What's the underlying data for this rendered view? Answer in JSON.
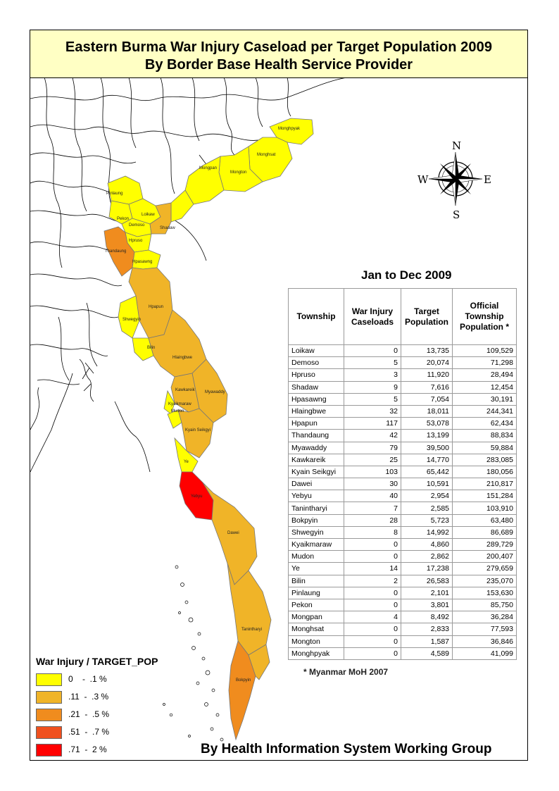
{
  "title": {
    "line1": "Eastern Burma War Injury Caseload per Target Population 2009",
    "line2": "By Border Base Health Service Provider"
  },
  "compass": {
    "n": "N",
    "s": "S",
    "e": "E",
    "w": "W"
  },
  "table": {
    "title": "Jan to Dec 2009",
    "headers": {
      "township": "Township",
      "caseloads": "War Injury Caseloads",
      "target": "Target Population",
      "official": "Official Township Population *"
    },
    "rows": [
      {
        "township": "Loikaw",
        "cases": "0",
        "target": "13,735",
        "official": "109,529"
      },
      {
        "township": "Demoso",
        "cases": "5",
        "target": "20,074",
        "official": "71,298"
      },
      {
        "township": "Hpruso",
        "cases": "3",
        "target": "11,920",
        "official": "28,494"
      },
      {
        "township": "Shadaw",
        "cases": "9",
        "target": "7,616",
        "official": "12,454"
      },
      {
        "township": "Hpasawng",
        "cases": "5",
        "target": "7,054",
        "official": "30,191"
      },
      {
        "township": "Hlaingbwe",
        "cases": "32",
        "target": "18,011",
        "official": "244,341"
      },
      {
        "township": "Hpapun",
        "cases": "117",
        "target": "53,078",
        "official": "62,434"
      },
      {
        "township": "Thandaung",
        "cases": "42",
        "target": "13,199",
        "official": "88,834"
      },
      {
        "township": "Myawaddy",
        "cases": "79",
        "target": "39,500",
        "official": "59,884"
      },
      {
        "township": "Kawkareik",
        "cases": "25",
        "target": "14,770",
        "official": "283,085"
      },
      {
        "township": "Kyain Seikgyi",
        "cases": "103",
        "target": "65,442",
        "official": "180,056"
      },
      {
        "township": "Dawei",
        "cases": "30",
        "target": "10,591",
        "official": "210,817"
      },
      {
        "township": "Yebyu",
        "cases": "40",
        "target": "2,954",
        "official": "151,284"
      },
      {
        "township": "Tanintharyi",
        "cases": "7",
        "target": "2,585",
        "official": "103,910"
      },
      {
        "township": "Bokpyin",
        "cases": "28",
        "target": "5,723",
        "official": "63,480"
      },
      {
        "township": "Shwegyin",
        "cases": "8",
        "target": "14,992",
        "official": "86,689"
      },
      {
        "township": "Kyaikmaraw",
        "cases": "0",
        "target": "4,860",
        "official": "289,729"
      },
      {
        "township": "Mudon",
        "cases": "0",
        "target": "2,862",
        "official": "200,407"
      },
      {
        "township": "Ye",
        "cases": "14",
        "target": "17,238",
        "official": "279,659"
      },
      {
        "township": "Bilin",
        "cases": "2",
        "target": "26,583",
        "official": "235,070"
      },
      {
        "township": "Pinlaung",
        "cases": "0",
        "target": "2,101",
        "official": "153,630"
      },
      {
        "township": "Pekon",
        "cases": "0",
        "target": "3,801",
        "official": "85,750"
      },
      {
        "township": "Mongpan",
        "cases": "4",
        "target": "8,492",
        "official": "36,284"
      },
      {
        "township": "Monghsat",
        "cases": "0",
        "target": "2,833",
        "official": "77,593"
      },
      {
        "township": "Mongton",
        "cases": "0",
        "target": "1,587",
        "official": "36,846"
      },
      {
        "township": "Monghpyak",
        "cases": "0",
        "target": "4,589",
        "official": "41,099"
      }
    ],
    "note": "* Myanmar MoH 2007"
  },
  "legend": {
    "title": "War Injury / TARGET_POP",
    "items": [
      {
        "label": "0    -  .1 %",
        "color": "#ffff00"
      },
      {
        "label": ".11  -  .3 %",
        "color": "#f0b428"
      },
      {
        "label": ".21  -  .5 %",
        "color": "#f08c1e"
      },
      {
        "label": ".51  -  .7 %",
        "color": "#f0501e"
      },
      {
        "label": ".71  -  2 %",
        "color": "#ff0000"
      }
    ]
  },
  "map_labels": {
    "monghpyak": "Monghpyak",
    "monghsat": "Monghsat",
    "mongpan": "Mongpan",
    "mongton": "Mongton",
    "pinlaung": "Pinlaung",
    "loikaw": "Loikaw",
    "pekon": "Pekon",
    "demoso": "Demoso",
    "shadaw": "Shadaw",
    "hpruso": "Hpruso",
    "thandaung": "Thandaung",
    "hpasawng": "Hpasawng",
    "hpapun": "Hpapun",
    "shwegyin": "Shwegyin",
    "bilin": "Bilin",
    "hlaingbwe": "Hlaingbwe",
    "kawkareik": "Kawkareik",
    "myawaddy": "Myawaddy",
    "kyaikmaraw": "Kyaikmaraw",
    "mudon": "Mudon",
    "kyainseikgyi": "Kyain Seikgyi",
    "ye": "Ye",
    "yebyu": "Yebyu",
    "dawei": "Dawei",
    "tanintharyi": "Tanintharyi",
    "bokpyin": "Bokpyin"
  },
  "colors": {
    "yellow": "#ffff00",
    "light_orange": "#f0b428",
    "orange": "#f08c1e",
    "dark_orange": "#f0501e",
    "red": "#ff0000",
    "title_bg": "#ffffc4"
  },
  "footer": "By Health Information System Working Group"
}
